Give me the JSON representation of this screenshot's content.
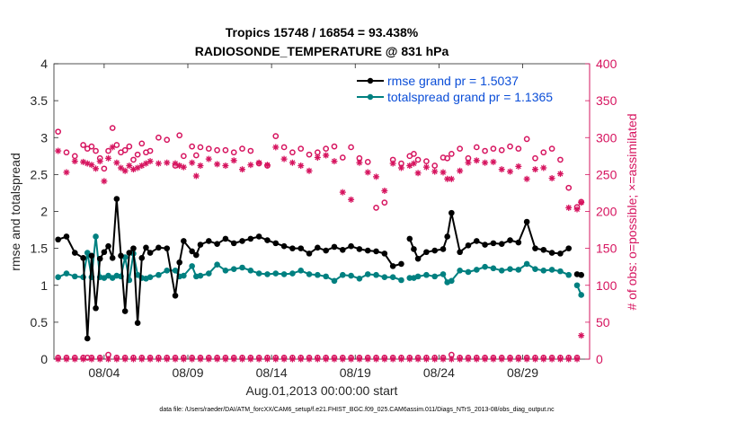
{
  "chart_data": {
    "type": "line",
    "title_line1": "Tropics 15748 / 16854 = 93.438%",
    "title_line2": "RADIOSONDE_TEMPERATURE @ 831 hPa",
    "xlabel": "Aug.01,2013 00:00:00 start",
    "ylabel_left": "rmse and totalspread",
    "ylabel_right": "# of obs: o=possible; ×=assimilated",
    "x_range_days": [
      0,
      32
    ],
    "ylim_left": [
      0,
      4
    ],
    "ylim_right": [
      0,
      400
    ],
    "x_ticks": [
      {
        "day": 3,
        "label": "08/04"
      },
      {
        "day": 8,
        "label": "08/09"
      },
      {
        "day": 13,
        "label": "08/14"
      },
      {
        "day": 18,
        "label": "08/19"
      },
      {
        "day": 23,
        "label": "08/24"
      },
      {
        "day": 28,
        "label": "08/29"
      }
    ],
    "y_ticks_left": [
      {
        "v": 0,
        "label": "0"
      },
      {
        "v": 0.5,
        "label": "0.5"
      },
      {
        "v": 1,
        "label": "1"
      },
      {
        "v": 1.5,
        "label": "1.5"
      },
      {
        "v": 2,
        "label": "2"
      },
      {
        "v": 2.5,
        "label": "2.5"
      },
      {
        "v": 3,
        "label": "3"
      },
      {
        "v": 3.5,
        "label": "3.5"
      },
      {
        "v": 4,
        "label": "4"
      }
    ],
    "y_ticks_right": [
      {
        "v": 0,
        "label": "0"
      },
      {
        "v": 50,
        "label": "50"
      },
      {
        "v": 100,
        "label": "100"
      },
      {
        "v": 150,
        "label": "150"
      },
      {
        "v": 200,
        "label": "200"
      },
      {
        "v": 250,
        "label": "250"
      },
      {
        "v": 300,
        "label": "300"
      },
      {
        "v": 350,
        "label": "350"
      },
      {
        "v": 400,
        "label": "400"
      }
    ],
    "colors": {
      "rmse": "#000000",
      "totalspread": "#008080",
      "counts": "#d6145f",
      "right_axis": "#d6145f",
      "legend_text": "#0b4ed8"
    },
    "legend": {
      "placement": "top-right",
      "rmse_label": "rmse grand pr = 1.5037",
      "spread_label": "totalspread grand pr = 1.1365"
    },
    "series": [
      {
        "name": "rmse",
        "x": [
          0.25,
          0.75,
          1.25,
          1.75,
          2.0,
          2.25,
          2.5,
          2.75,
          3.0,
          3.25,
          3.5,
          3.75,
          4.0,
          4.25,
          4.5,
          4.75,
          5.0,
          5.25,
          5.5,
          5.75,
          6.25,
          6.75,
          7.25,
          7.5,
          7.75,
          8.25,
          8.5,
          8.75,
          9.25,
          9.75,
          10.25,
          10.75,
          11.25,
          11.75,
          12.25,
          12.75,
          13.25,
          13.75,
          14.25,
          14.75,
          15.25,
          15.75,
          16.25,
          16.75,
          17.25,
          17.75,
          18.25,
          18.75,
          19.25,
          19.75,
          20.25,
          20.75,
          21.25,
          21.5,
          21.75,
          22.25,
          22.75,
          23.25,
          23.5,
          23.75,
          24.25,
          24.75,
          25.25,
          25.75,
          26.25,
          26.75,
          27.25,
          27.75,
          28.25,
          28.75,
          29.25,
          29.75,
          30.25,
          30.75,
          31.25,
          31.5
        ],
        "values": [
          1.62,
          1.66,
          1.44,
          1.37,
          0.28,
          1.4,
          0.69,
          1.36,
          1.45,
          1.53,
          1.37,
          2.17,
          1.4,
          0.65,
          1.44,
          1.5,
          0.49,
          1.37,
          1.51,
          1.44,
          1.51,
          1.5,
          0.86,
          1.31,
          1.6,
          1.46,
          1.41,
          1.55,
          1.6,
          1.56,
          1.63,
          1.57,
          1.6,
          1.63,
          1.66,
          1.61,
          1.57,
          1.53,
          1.5,
          1.5,
          1.43,
          1.51,
          1.47,
          1.52,
          1.48,
          1.53,
          1.49,
          1.47,
          1.46,
          1.43,
          1.26,
          1.29,
          1.63,
          1.49,
          1.36,
          1.45,
          1.47,
          1.49,
          1.66,
          1.98,
          1.45,
          1.54,
          1.6,
          1.55,
          1.57,
          1.56,
          1.61,
          1.58,
          1.86,
          1.5,
          1.48,
          1.44,
          1.43,
          1.5,
          1.15,
          1.14
        ],
        "gaps_before_index": [
          52,
          74
        ]
      },
      {
        "name": "totalspread",
        "x": [
          0.25,
          0.75,
          1.25,
          1.75,
          2.0,
          2.25,
          2.5,
          2.75,
          3.0,
          3.25,
          3.5,
          3.75,
          4.0,
          4.25,
          4.5,
          4.75,
          5.0,
          5.25,
          5.5,
          5.75,
          6.25,
          6.75,
          7.25,
          7.5,
          7.75,
          8.25,
          8.5,
          8.75,
          9.25,
          9.75,
          10.25,
          10.75,
          11.25,
          11.75,
          12.25,
          12.75,
          13.25,
          13.75,
          14.25,
          14.75,
          15.25,
          15.75,
          16.25,
          16.75,
          17.25,
          17.75,
          18.25,
          18.75,
          19.25,
          19.75,
          20.25,
          20.75,
          21.25,
          21.5,
          21.75,
          22.25,
          22.75,
          23.25,
          23.5,
          23.75,
          24.25,
          24.75,
          25.25,
          25.75,
          26.25,
          26.75,
          27.25,
          27.75,
          28.25,
          28.75,
          29.25,
          29.75,
          30.25,
          30.75,
          31.25,
          31.5
        ],
        "values": [
          1.11,
          1.16,
          1.12,
          1.11,
          1.44,
          1.11,
          1.66,
          1.11,
          1.1,
          1.13,
          1.1,
          1.13,
          1.12,
          1.38,
          1.07,
          1.43,
          1.14,
          1.1,
          1.09,
          1.11,
          1.14,
          1.2,
          1.2,
          1.12,
          1.13,
          1.26,
          1.12,
          1.13,
          1.16,
          1.28,
          1.2,
          1.22,
          1.24,
          1.2,
          1.16,
          1.15,
          1.16,
          1.15,
          1.16,
          1.2,
          1.15,
          1.14,
          1.12,
          1.06,
          1.14,
          1.13,
          1.09,
          1.15,
          1.14,
          1.11,
          1.11,
          1.07,
          1.1,
          1.1,
          1.12,
          1.14,
          1.12,
          1.15,
          1.04,
          1.06,
          1.2,
          1.18,
          1.21,
          1.25,
          1.23,
          1.2,
          1.22,
          1.21,
          1.29,
          1.22,
          1.2,
          1.21,
          1.19,
          1.14,
          1.0,
          0.87
        ],
        "gaps_before_index": [
          52,
          74
        ]
      }
    ],
    "obs_possible": {
      "name": "possible (o)",
      "x": [
        0.25,
        0.75,
        1.25,
        1.75,
        2.0,
        2.25,
        2.5,
        2.75,
        3.0,
        3.25,
        3.5,
        3.75,
        4.0,
        4.25,
        4.5,
        4.75,
        5.0,
        5.25,
        5.5,
        5.75,
        6.25,
        6.75,
        7.25,
        7.5,
        7.75,
        8.25,
        8.5,
        8.75,
        9.25,
        9.75,
        10.25,
        10.75,
        11.25,
        11.75,
        12.25,
        12.75,
        13.25,
        13.75,
        14.25,
        14.75,
        15.25,
        15.75,
        16.25,
        16.75,
        17.25,
        17.75,
        18.25,
        18.75,
        19.25,
        19.75,
        20.25,
        20.75,
        21.25,
        21.5,
        21.75,
        22.25,
        22.75,
        23.25,
        23.5,
        23.75,
        24.25,
        24.75,
        25.25,
        25.75,
        26.25,
        26.75,
        27.25,
        27.75,
        28.25,
        28.75,
        29.25,
        29.75,
        30.25,
        30.75,
        31.25,
        31.5
      ],
      "values": [
        308,
        280,
        275,
        290,
        285,
        288,
        282,
        272,
        258,
        282,
        313,
        290,
        280,
        283,
        288,
        270,
        277,
        292,
        280,
        282,
        300,
        297,
        262,
        303,
        275,
        288,
        276,
        287,
        285,
        283,
        283,
        280,
        285,
        282,
        265,
        262,
        302,
        287,
        280,
        285,
        277,
        280,
        285,
        288,
        273,
        287,
        272,
        267,
        205,
        212,
        270,
        265,
        275,
        278,
        270,
        268,
        262,
        273,
        272,
        278,
        285,
        272,
        287,
        282,
        285,
        283,
        288,
        285,
        298,
        272,
        280,
        285,
        270,
        232,
        206,
        213
      ]
    },
    "obs_assimilated": {
      "name": "assimilated (×)",
      "x": [
        0.25,
        0.75,
        1.25,
        1.75,
        2.0,
        2.25,
        2.5,
        2.75,
        3.0,
        3.25,
        3.5,
        3.75,
        4.0,
        4.25,
        4.5,
        4.75,
        5.0,
        5.25,
        5.5,
        5.75,
        6.25,
        6.75,
        7.25,
        7.5,
        7.75,
        8.25,
        8.5,
        8.75,
        9.25,
        9.75,
        10.25,
        10.75,
        11.25,
        11.75,
        12.25,
        12.75,
        13.25,
        13.75,
        14.25,
        14.75,
        15.25,
        15.75,
        16.25,
        16.75,
        17.25,
        17.75,
        18.25,
        18.75,
        19.25,
        19.75,
        20.25,
        20.75,
        21.25,
        21.5,
        21.75,
        22.25,
        22.75,
        23.25,
        23.5,
        23.75,
        24.25,
        24.75,
        25.25,
        25.75,
        26.25,
        26.75,
        27.25,
        27.75,
        28.25,
        28.75,
        29.25,
        29.75,
        30.25,
        30.75,
        31.25,
        31.5
      ],
      "values": [
        282,
        253,
        268,
        267,
        265,
        263,
        258,
        268,
        241,
        272,
        287,
        266,
        259,
        255,
        262,
        257,
        259,
        262,
        265,
        268,
        265,
        266,
        265,
        262,
        260,
        266,
        248,
        262,
        271,
        264,
        262,
        269,
        257,
        263,
        266,
        263,
        287,
        271,
        266,
        262,
        255,
        273,
        276,
        268,
        226,
        216,
        266,
        253,
        247,
        228,
        265,
        259,
        262,
        265,
        252,
        260,
        254,
        253,
        244,
        244,
        255,
        266,
        269,
        266,
        267,
        257,
        254,
        261,
        244,
        257,
        259,
        245,
        251,
        205,
        203,
        212
      ]
    },
    "obs_zero_line": {
      "possible_x": [
        0.25,
        0.75,
        1.25,
        1.75,
        2.0,
        2.25,
        2.75,
        3.25,
        3.75,
        4.25,
        4.75,
        5.25,
        5.75,
        6.25,
        6.75,
        7.25,
        7.75,
        8.25,
        8.75,
        9.25,
        9.75,
        10.25,
        10.75,
        11.25,
        11.75,
        12.25,
        12.75,
        13.25,
        13.75,
        14.25,
        14.75,
        15.25,
        15.75,
        16.25,
        16.75,
        17.25,
        17.75,
        18.25,
        18.75,
        19.25,
        19.75,
        20.25,
        20.75,
        21.25,
        21.75,
        22.25,
        22.75,
        23.25,
        23.75,
        24.25,
        24.75,
        25.25,
        25.75,
        26.25,
        26.75,
        27.25,
        27.75,
        28.25,
        28.75,
        29.25,
        29.75,
        30.25,
        30.75,
        31.25
      ],
      "possible_values": [
        2,
        2,
        2,
        2,
        2,
        2,
        2,
        6,
        2,
        2,
        2,
        2,
        2,
        2,
        2,
        2,
        2,
        2,
        2,
        2,
        2,
        2,
        2,
        2,
        2,
        2,
        2,
        2,
        2,
        2,
        2,
        2,
        2,
        2,
        2,
        2,
        2,
        2,
        2,
        2,
        2,
        2,
        2,
        2,
        2,
        2,
        2,
        2,
        6,
        2,
        2,
        2,
        2,
        2,
        2,
        2,
        2,
        2,
        2,
        2,
        2,
        2,
        2,
        2
      ],
      "assimilated_x": [
        0.25,
        0.75,
        1.25,
        1.75,
        2.25,
        2.75,
        3.25,
        3.75,
        4.25,
        4.75,
        5.25,
        5.75,
        6.25,
        6.75,
        7.25,
        7.75,
        8.25,
        8.75,
        9.25,
        9.75,
        10.25,
        10.75,
        11.25,
        11.75,
        12.25,
        12.75,
        13.25,
        13.75,
        14.25,
        14.75,
        15.25,
        15.75,
        16.25,
        16.75,
        17.25,
        17.75,
        18.25,
        18.75,
        19.25,
        19.75,
        20.25,
        20.75,
        21.25,
        21.75,
        22.25,
        22.75,
        23.25,
        23.75,
        24.25,
        24.75,
        25.25,
        25.75,
        26.25,
        26.75,
        27.25,
        27.75,
        28.25,
        28.75,
        29.25,
        29.75,
        30.25,
        30.75,
        31.25,
        31.5
      ],
      "assimilated_values": [
        0,
        0,
        0,
        0,
        0,
        0,
        0,
        0,
        0,
        0,
        0,
        0,
        0,
        0,
        0,
        0,
        0,
        0,
        0,
        0,
        0,
        0,
        0,
        0,
        0,
        0,
        0,
        0,
        0,
        0,
        0,
        0,
        0,
        0,
        0,
        0,
        0,
        0,
        0,
        0,
        0,
        0,
        0,
        0,
        0,
        0,
        0,
        0,
        0,
        0,
        0,
        0,
        0,
        0,
        0,
        0,
        0,
        0,
        0,
        0,
        0,
        0,
        0,
        32
      ]
    }
  },
  "footer": {
    "data_file": "data file: /Users/raeder/DAI/ATM_forcXX/CAM6_setup/f.e21.FHIST_BGC.f09_025.CAM6assim.011/Diags_NTrS_2013-08/obs_diag_output.nc"
  }
}
